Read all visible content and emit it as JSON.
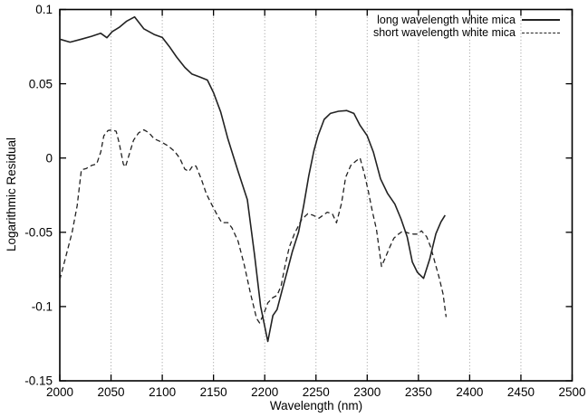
{
  "chart_data": {
    "type": "line",
    "title": "",
    "xlabel": "Wavelength (nm)",
    "ylabel": "Logarithmic Residual",
    "xlim": [
      2000,
      2500
    ],
    "ylim": [
      -0.15,
      0.1
    ],
    "xticks": {
      "values": [
        2000,
        2050,
        2100,
        2150,
        2200,
        2250,
        2300,
        2350,
        2400,
        2450,
        2500
      ],
      "labels": [
        "2000",
        "2050",
        "2100",
        "2150",
        "2200",
        "2250",
        "2300",
        "2350",
        "2400",
        "2450",
        "2500"
      ]
    },
    "yticks": {
      "values": [
        0.1,
        0.05,
        0,
        -0.05,
        -0.1,
        -0.15
      ],
      "labels": [
        "0.1",
        "0.05",
        "0",
        "-0.05",
        "-0.1",
        "-0.15"
      ]
    },
    "grid": {
      "vertical_dotted": true,
      "horizontal": false
    },
    "colors": {
      "line": "#222222",
      "grid": "#999999",
      "text": "#000000",
      "background": "#ffffff"
    },
    "legend": {
      "position": "top-right",
      "entries": [
        {
          "label": "long wavelength white mica",
          "style": "solid"
        },
        {
          "label": "short wavelength white mica",
          "style": "dashed"
        }
      ]
    },
    "series": [
      {
        "name": "long wavelength white mica",
        "style": "solid",
        "points": [
          [
            2000,
            0.08
          ],
          [
            2010,
            0.078
          ],
          [
            2021,
            0.08
          ],
          [
            2031,
            0.082
          ],
          [
            2040,
            0.084
          ],
          [
            2046,
            0.081
          ],
          [
            2051,
            0.085
          ],
          [
            2058,
            0.088
          ],
          [
            2065,
            0.092
          ],
          [
            2073,
            0.095
          ],
          [
            2082,
            0.087
          ],
          [
            2092,
            0.0832
          ],
          [
            2100,
            0.0812
          ],
          [
            2107,
            0.075
          ],
          [
            2114,
            0.068
          ],
          [
            2122,
            0.061
          ],
          [
            2129,
            0.0565
          ],
          [
            2137,
            0.0545
          ],
          [
            2144,
            0.0525
          ],
          [
            2150,
            0.044
          ],
          [
            2157,
            0.031
          ],
          [
            2164,
            0.013
          ],
          [
            2174,
            -0.009
          ],
          [
            2183,
            -0.028
          ],
          [
            2190,
            -0.065
          ],
          [
            2196,
            -0.1
          ],
          [
            2203,
            -0.1235
          ],
          [
            2208,
            -0.106
          ],
          [
            2212,
            -0.102
          ],
          [
            2217,
            -0.089
          ],
          [
            2222,
            -0.076
          ],
          [
            2227,
            -0.063
          ],
          [
            2233,
            -0.05
          ],
          [
            2238,
            -0.032
          ],
          [
            2243,
            -0.012
          ],
          [
            2248,
            0.005
          ],
          [
            2252,
            0.015
          ],
          [
            2258,
            0.026
          ],
          [
            2264,
            0.03
          ],
          [
            2272,
            0.0315
          ],
          [
            2280,
            0.032
          ],
          [
            2287,
            0.03
          ],
          [
            2293,
            0.022
          ],
          [
            2300,
            0.015
          ],
          [
            2306,
            0.004
          ],
          [
            2313,
            -0.014
          ],
          [
            2320,
            -0.024
          ],
          [
            2327,
            -0.031
          ],
          [
            2333,
            -0.041
          ],
          [
            2339,
            -0.053
          ],
          [
            2344,
            -0.07
          ],
          [
            2349,
            -0.077
          ],
          [
            2355,
            -0.081
          ],
          [
            2361,
            -0.068
          ],
          [
            2367,
            -0.051
          ],
          [
            2372,
            -0.043
          ],
          [
            2376,
            -0.0385
          ]
        ]
      },
      {
        "name": "short wavelength white mica",
        "style": "dashed",
        "points": [
          [
            2000,
            -0.082
          ],
          [
            2006,
            -0.066
          ],
          [
            2012,
            -0.05
          ],
          [
            2017,
            -0.032
          ],
          [
            2021,
            -0.008
          ],
          [
            2026,
            -0.007
          ],
          [
            2031,
            -0.005
          ],
          [
            2036,
            -0.004
          ],
          [
            2040,
            0.004
          ],
          [
            2043,
            0.015
          ],
          [
            2047,
            0.0185
          ],
          [
            2051,
            0.019
          ],
          [
            2055,
            0.018
          ],
          [
            2058,
            0.01
          ],
          [
            2062,
            -0.004
          ],
          [
            2064,
            -0.006
          ],
          [
            2068,
            0.003
          ],
          [
            2072,
            0.012
          ],
          [
            2077,
            0.017
          ],
          [
            2082,
            0.019
          ],
          [
            2087,
            0.017
          ],
          [
            2092,
            0.013
          ],
          [
            2100,
            0.0105
          ],
          [
            2106,
            0.008
          ],
          [
            2112,
            0.0045
          ],
          [
            2117,
            0.0
          ],
          [
            2122,
            -0.0075
          ],
          [
            2126,
            -0.009
          ],
          [
            2130,
            -0.005
          ],
          [
            2133,
            -0.0055
          ],
          [
            2138,
            -0.014
          ],
          [
            2143,
            -0.024
          ],
          [
            2148,
            -0.031
          ],
          [
            2153,
            -0.0375
          ],
          [
            2158,
            -0.0435
          ],
          [
            2164,
            -0.0435
          ],
          [
            2168,
            -0.047
          ],
          [
            2174,
            -0.056
          ],
          [
            2180,
            -0.072
          ],
          [
            2186,
            -0.091
          ],
          [
            2192,
            -0.108
          ],
          [
            2195,
            -0.111
          ],
          [
            2199,
            -0.105
          ],
          [
            2203,
            -0.0975
          ],
          [
            2208,
            -0.094
          ],
          [
            2212,
            -0.0925
          ],
          [
            2216,
            -0.086
          ],
          [
            2220,
            -0.072
          ],
          [
            2224,
            -0.06
          ],
          [
            2229,
            -0.051
          ],
          [
            2236,
            -0.0415
          ],
          [
            2242,
            -0.0375
          ],
          [
            2247,
            -0.0385
          ],
          [
            2253,
            -0.0405
          ],
          [
            2257,
            -0.0385
          ],
          [
            2261,
            -0.0365
          ],
          [
            2266,
            -0.0375
          ],
          [
            2270,
            -0.0436
          ],
          [
            2275,
            -0.0304
          ],
          [
            2279,
            -0.013
          ],
          [
            2284,
            -0.005
          ],
          [
            2289,
            -0.002
          ],
          [
            2293,
            0.0
          ],
          [
            2297,
            -0.01
          ],
          [
            2301,
            -0.022
          ],
          [
            2305,
            -0.036
          ],
          [
            2309,
            -0.048
          ],
          [
            2314,
            -0.073
          ],
          [
            2318,
            -0.0665
          ],
          [
            2322,
            -0.06
          ],
          [
            2326,
            -0.054
          ],
          [
            2330,
            -0.0515
          ],
          [
            2335,
            -0.049
          ],
          [
            2340,
            -0.0505
          ],
          [
            2345,
            -0.0512
          ],
          [
            2349,
            -0.0512
          ],
          [
            2353,
            -0.049
          ],
          [
            2358,
            -0.053
          ],
          [
            2362,
            -0.06
          ],
          [
            2366,
            -0.07
          ],
          [
            2370,
            -0.08
          ],
          [
            2374,
            -0.0915
          ],
          [
            2377,
            -0.107
          ]
        ]
      }
    ]
  }
}
